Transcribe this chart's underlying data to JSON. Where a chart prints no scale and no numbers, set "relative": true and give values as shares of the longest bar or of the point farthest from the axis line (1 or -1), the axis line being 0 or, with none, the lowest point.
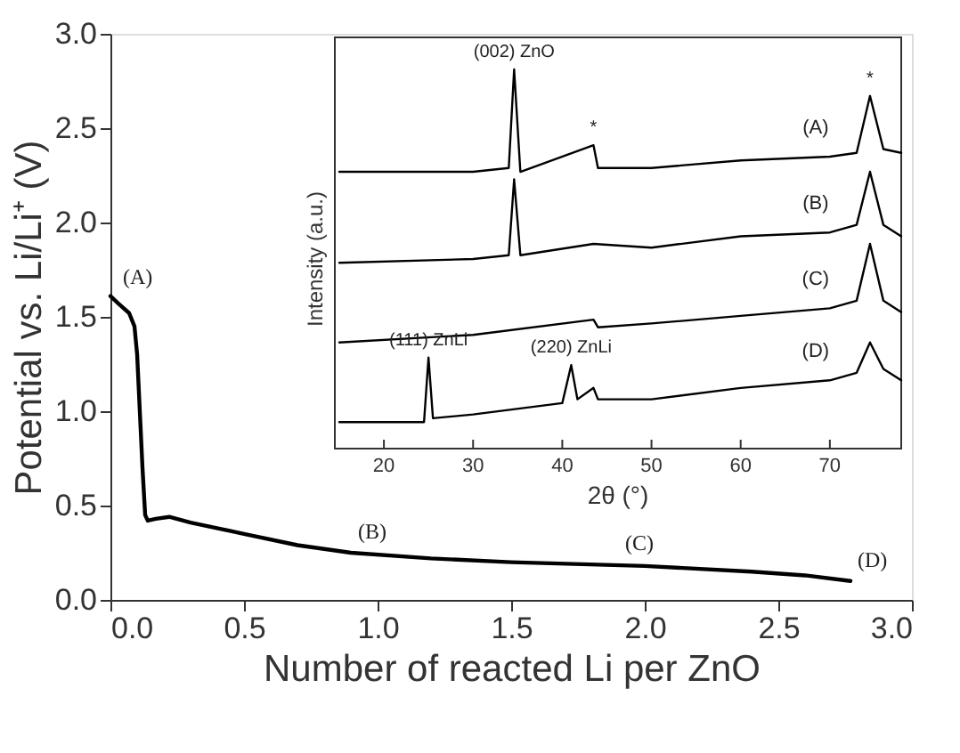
{
  "chart_data": [
    {
      "type": "line",
      "xlabel": "Number of reacted Li per ZnO",
      "ylabel": "Potential vs. Li/Li⁺ (V)",
      "xlim": [
        0,
        3
      ],
      "ylim": [
        0,
        3
      ],
      "xticks": [
        {
          "value": 0,
          "label": "0.0"
        },
        0.5,
        {
          "value": 1,
          "label": "1.0"
        },
        1.5,
        {
          "value": 2,
          "label": "2.0"
        },
        2.5,
        {
          "value": 3,
          "label": "3.0"
        }
      ],
      "yticks": [
        {
          "value": 0,
          "label": "0.0"
        },
        0.5,
        {
          "value": 1,
          "label": "1.0"
        },
        1.5,
        {
          "value": 2,
          "label": "2.0"
        },
        2.5,
        {
          "value": 3,
          "label": "3.0"
        }
      ],
      "series": [
        {
          "color": "#000000",
          "x": [
            0,
            0.03,
            0.07,
            0.09,
            0.1,
            0.11,
            0.12,
            0.13,
            0.14,
            0.17,
            0.22,
            0.3,
            0.5,
            0.7,
            0.9,
            1.2,
            1.5,
            2.0,
            2.4,
            2.6,
            2.77
          ],
          "values": [
            1.61,
            1.57,
            1.52,
            1.45,
            1.3,
            1.0,
            0.7,
            0.45,
            0.42,
            0.43,
            0.44,
            0.41,
            0.35,
            0.29,
            0.25,
            0.22,
            0.2,
            0.18,
            0.15,
            0.13,
            0.1
          ]
        }
      ],
      "annotations": [
        {
          "text": "(A)",
          "x": 0.02,
          "y": 1.6
        },
        {
          "text": "(B)",
          "x": 0.9,
          "y": 0.25
        },
        {
          "text": "(C)",
          "x": 1.9,
          "y": 0.19
        },
        {
          "text": "(D)",
          "x": 2.77,
          "y": 0.1
        }
      ]
    },
    {
      "type": "line",
      "relative": true,
      "xlabel": "2θ (°)",
      "ylabel": "Intensity (a.u.)",
      "xlim": [
        14.5,
        78
      ],
      "xticks": [
        20,
        30,
        40,
        50,
        60,
        70
      ],
      "series": [
        {
          "name": "(A)",
          "color": "#000000",
          "x": [
            15,
            30,
            34,
            34.6,
            35.3,
            43.5,
            44,
            50,
            60,
            70,
            73,
            74.5,
            76,
            78
          ],
          "values": [
            0.73,
            0.73,
            0.74,
            1.0,
            0.73,
            0.8,
            0.74,
            0.74,
            0.76,
            0.77,
            0.78,
            0.93,
            0.79,
            0.78
          ]
        },
        {
          "name": "(B)",
          "color": "#000000",
          "x": [
            15,
            30,
            34,
            34.6,
            35.3,
            43.5,
            50,
            60,
            70,
            73,
            74.5,
            76,
            78
          ],
          "values": [
            0.49,
            0.5,
            0.51,
            0.71,
            0.51,
            0.54,
            0.53,
            0.56,
            0.57,
            0.59,
            0.73,
            0.59,
            0.56
          ]
        },
        {
          "name": "(C)",
          "color": "#000000",
          "x": [
            15,
            30,
            43.5,
            44,
            50,
            60,
            70,
            73,
            74.5,
            76,
            78
          ],
          "values": [
            0.28,
            0.3,
            0.34,
            0.32,
            0.33,
            0.35,
            0.37,
            0.39,
            0.54,
            0.39,
            0.36
          ]
        },
        {
          "name": "(D)",
          "color": "#000000",
          "x": [
            15,
            24.5,
            25,
            25.5,
            30,
            40,
            41,
            41.7,
            43.5,
            44,
            50,
            60,
            70,
            73,
            74.5,
            76,
            78
          ],
          "values": [
            0.07,
            0.07,
            0.24,
            0.08,
            0.09,
            0.12,
            0.22,
            0.13,
            0.16,
            0.13,
            0.13,
            0.16,
            0.18,
            0.2,
            0.28,
            0.21,
            0.18
          ]
        }
      ],
      "annotations": [
        {
          "text": "(002) ZnO",
          "x": 34.6,
          "y": 1.0
        },
        {
          "text": "*",
          "x": 43.5,
          "y": 0.8
        },
        {
          "text": "*",
          "x": 74.5,
          "y": 0.93
        },
        {
          "text": "(111) ZnLi",
          "x": 25,
          "y": 0.24
        },
        {
          "text": "(220) ZnLi",
          "x": 41,
          "y": 0.22
        }
      ]
    }
  ]
}
